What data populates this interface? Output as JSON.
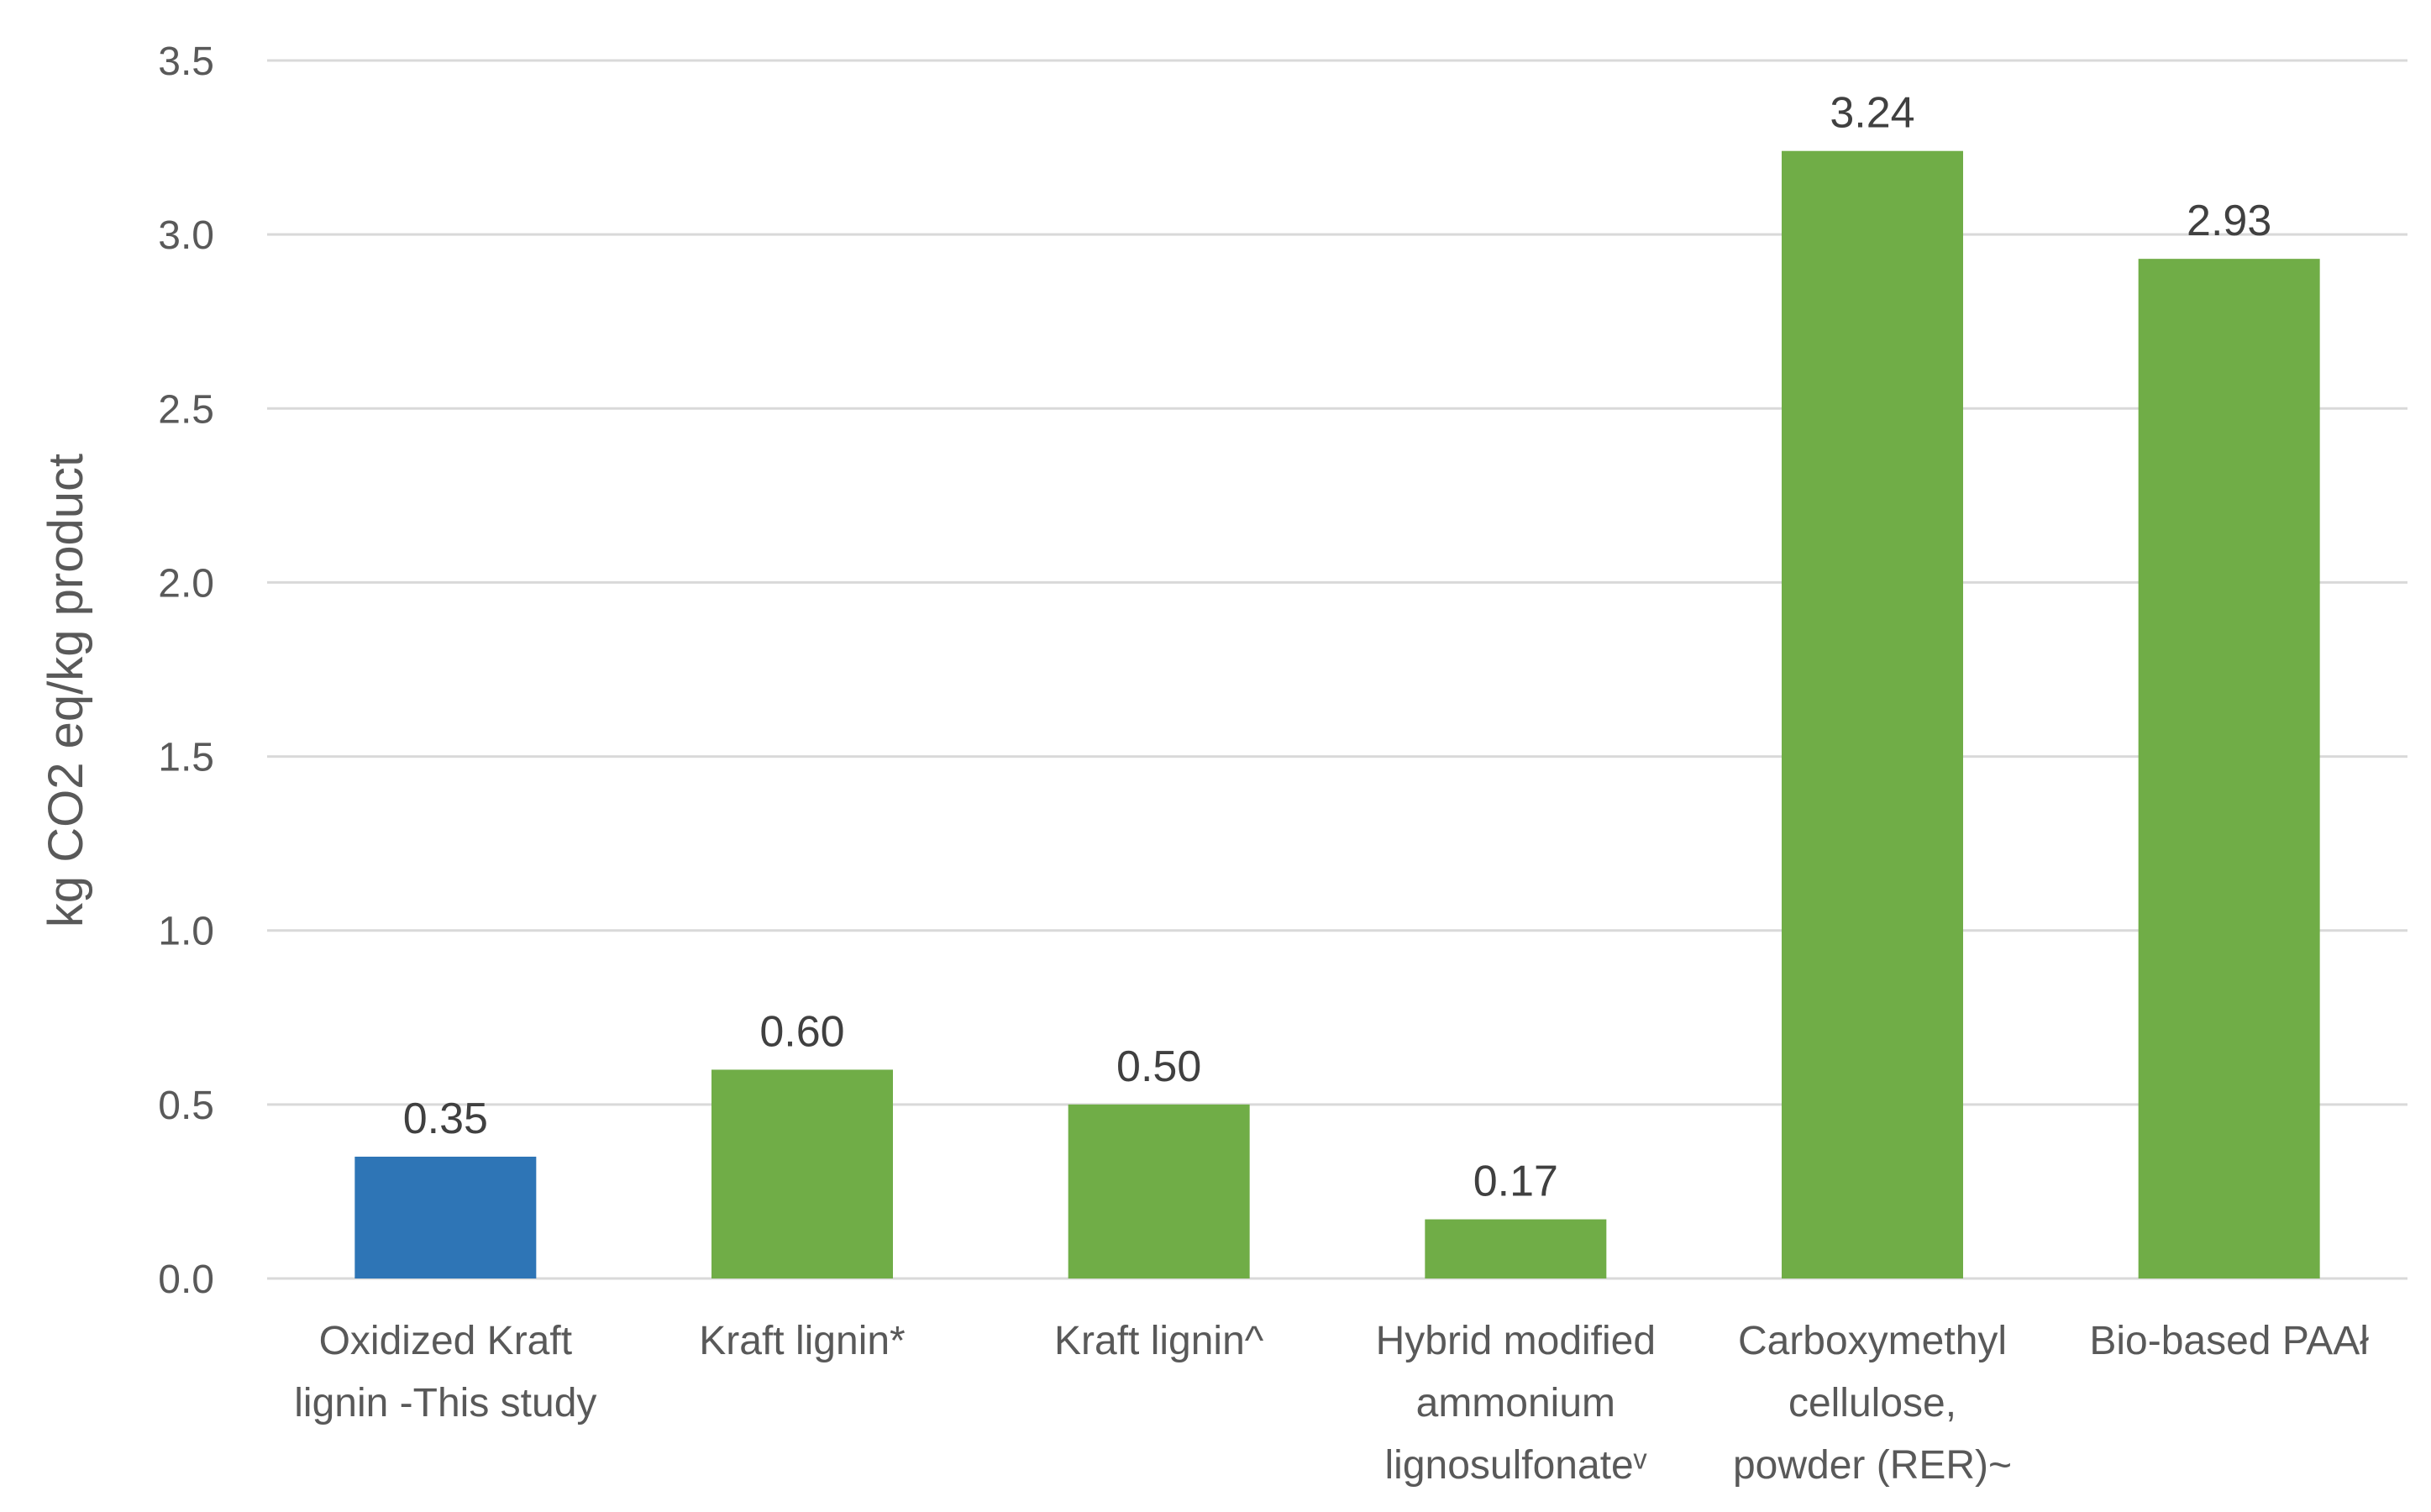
{
  "chart_data": {
    "type": "bar",
    "title": "",
    "xlabel": "",
    "ylabel": "kg CO2 eq/kg product",
    "ylim": [
      0,
      3.5
    ],
    "yticks": [
      "0.0",
      "0.5",
      "1.0",
      "1.5",
      "2.0",
      "2.5",
      "3.0",
      "3.5"
    ],
    "grid": true,
    "legend": "none",
    "categories": [
      [
        "Oxidized Kraft",
        "lignin -This study"
      ],
      [
        "Kraft lignin*"
      ],
      [
        "Kraft lignin^"
      ],
      [
        "Hybrid modified",
        "ammonium",
        "lignosulfonateᵛ"
      ],
      [
        "Carboxymethyl",
        "cellulose,",
        "powder (RER)~"
      ],
      [
        "Bio-based PAAł"
      ]
    ],
    "values": [
      0.35,
      0.6,
      0.5,
      0.17,
      3.24,
      2.93
    ],
    "data_labels": [
      "0.35",
      "0.60",
      "0.50",
      "0.17",
      "3.24",
      "2.93"
    ],
    "bar_colors": [
      "#2e75b6",
      "#70ad47",
      "#70ad47",
      "#70ad47",
      "#70ad47",
      "#70ad47"
    ]
  }
}
